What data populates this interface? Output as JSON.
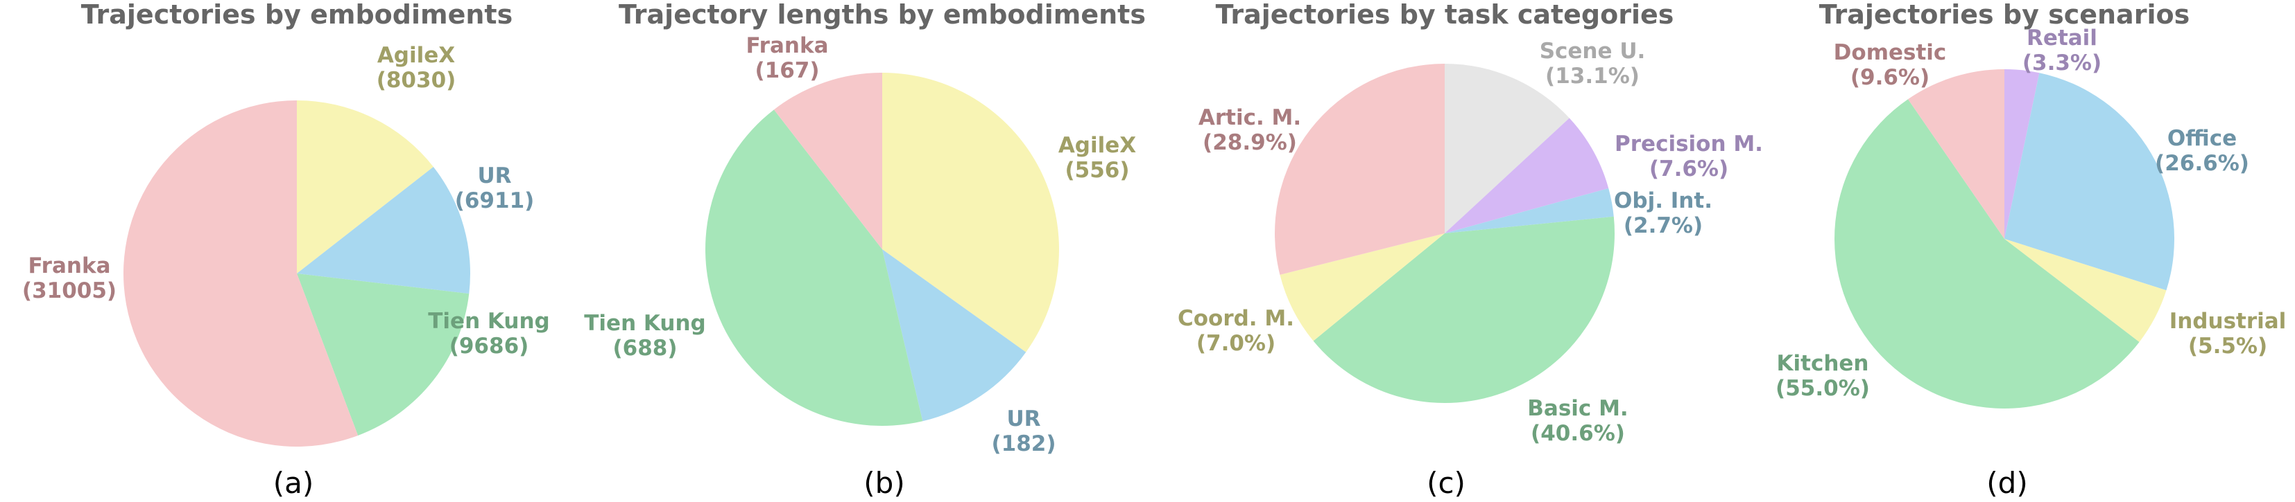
{
  "chart_data": [
    {
      "type": "pie",
      "title": "Trajectories by embodiments",
      "caption": "(a)",
      "slices": [
        {
          "label": "AgileX",
          "value": 8030,
          "display": "(8030)",
          "color": "#f8f4b4",
          "label_color": "#a09f66"
        },
        {
          "label": "UR",
          "value": 6911,
          "display": "(6911)",
          "color": "#a8d8f0",
          "label_color": "#6d93a6"
        },
        {
          "label": "Tien Kung",
          "value": 9686,
          "display": "(9686)",
          "color": "#a6e6b9",
          "label_color": "#6da07c"
        },
        {
          "label": "Franka",
          "value": 31005,
          "display": "(31005)",
          "color": "#f6c8ca",
          "label_color": "#a97c7f"
        }
      ]
    },
    {
      "type": "pie",
      "title": "Trajectory lengths by embodiments",
      "caption": "(b)",
      "slices": [
        {
          "label": "AgileX",
          "value": 556,
          "display": "(556)",
          "color": "#f8f4b4",
          "label_color": "#a09f66"
        },
        {
          "label": "UR",
          "value": 182,
          "display": "(182)",
          "color": "#a8d8f0",
          "label_color": "#6d93a6"
        },
        {
          "label": "Tien Kung",
          "value": 688,
          "display": "(688)",
          "color": "#a6e6b9",
          "label_color": "#6da07c"
        },
        {
          "label": "Franka",
          "value": 167,
          "display": "(167)",
          "color": "#f6c8ca",
          "label_color": "#a97c7f"
        }
      ]
    },
    {
      "type": "pie",
      "title": "Trajectories by task categories",
      "caption": "(c)",
      "slices": [
        {
          "label": "Scene U.",
          "value": 13.1,
          "display": "(13.1%)",
          "color": "#e6e6e6",
          "label_color": "#a9a9a9"
        },
        {
          "label": "Precision M.",
          "value": 7.6,
          "display": "(7.6%)",
          "color": "#d5b8f5",
          "label_color": "#9a85b3"
        },
        {
          "label": "Obj. Int.",
          "value": 2.7,
          "display": "(2.7%)",
          "color": "#a8d8f0",
          "label_color": "#6d93a6"
        },
        {
          "label": "Basic M.",
          "value": 40.6,
          "display": "(40.6%)",
          "color": "#a6e6b9",
          "label_color": "#6da07c"
        },
        {
          "label": "Coord. M.",
          "value": 7.0,
          "display": "(7.0%)",
          "color": "#f8f4b4",
          "label_color": "#a09f66"
        },
        {
          "label": "Artic. M.",
          "value": 28.9,
          "display": "(28.9%)",
          "color": "#f6c8ca",
          "label_color": "#a97c7f"
        }
      ]
    },
    {
      "type": "pie",
      "title": "Trajectories by scenarios",
      "caption": "(d)",
      "slices": [
        {
          "label": "Retail",
          "value": 3.3,
          "display": "(3.3%)",
          "color": "#d5b8f5",
          "label_color": "#9a85b3"
        },
        {
          "label": "Office",
          "value": 26.6,
          "display": "(26.6%)",
          "color": "#a8d8f0",
          "label_color": "#6d93a6"
        },
        {
          "label": "Industrial",
          "value": 5.5,
          "display": "(5.5%)",
          "color": "#f8f4b4",
          "label_color": "#a09f66"
        },
        {
          "label": "Kitchen",
          "value": 55.0,
          "display": "(55.0%)",
          "color": "#a6e6b9",
          "label_color": "#6da07c"
        },
        {
          "label": "Domestic",
          "value": 9.6,
          "display": "(9.6%)",
          "color": "#f6c8ca",
          "label_color": "#a97c7f"
        }
      ]
    }
  ]
}
